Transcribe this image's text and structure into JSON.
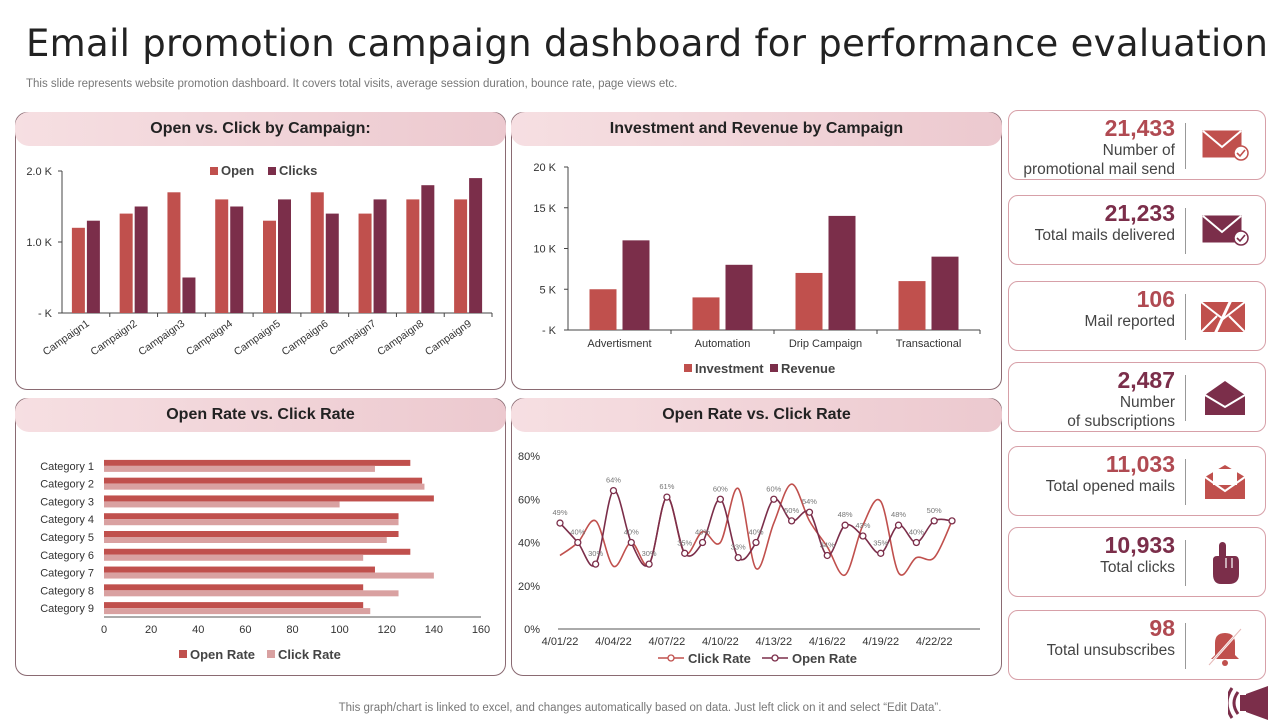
{
  "header": {
    "title": "Email promotion campaign dashboard for performance evaluation",
    "subtitle": "This slide represents website promotion dashboard. It covers total visits, average session duration, bounce rate, page views etc."
  },
  "footer": {
    "note": "This graph/chart is linked to excel,  and changes automatically based on data. Just left click on it and select “Edit Data”."
  },
  "colors": {
    "accent_red": "#c0504d",
    "accent_maroon": "#7b2e4a",
    "light_pink": "#d9a1a1",
    "kpi_border": "#d7a0a8"
  },
  "kpis": [
    {
      "value": "21,433",
      "label_lines": [
        "Number of",
        "promotional mail send"
      ],
      "icon": "mail-check-icon"
    },
    {
      "value": "21,233",
      "label_lines": [
        "Total mails delivered"
      ],
      "icon": "mail-check-icon"
    },
    {
      "value": "106",
      "label_lines": [
        "Mail reported"
      ],
      "icon": "mail-reported-icon"
    },
    {
      "value": "2,487",
      "label_lines": [
        "Number",
        "of subscriptions"
      ],
      "icon": "open-envelope-icon"
    },
    {
      "value": "11,033",
      "label_lines": [
        "Total opened mails"
      ],
      "icon": "opened-mail-icon"
    },
    {
      "value": "10,933",
      "label_lines": [
        "Total clicks"
      ],
      "icon": "pointing-hand-icon"
    },
    {
      "value": "98",
      "label_lines": [
        "Total unsubscribes"
      ],
      "icon": "bell-off-icon"
    }
  ],
  "chart_data": [
    {
      "type": "bar",
      "title": "Open vs. Click by Campaign:",
      "categories": [
        "Campaign1",
        "Campaign2",
        "Campaign3",
        "Campaign4",
        "Campaign5",
        "Campaign6",
        "Campaign7",
        "Campaign8",
        "Campaign9"
      ],
      "series": [
        {
          "name": "Open",
          "values": [
            1200,
            1400,
            1700,
            1600,
            1300,
            1700,
            1400,
            1600,
            1600
          ]
        },
        {
          "name": "Clicks",
          "values": [
            1300,
            1500,
            500,
            1500,
            1600,
            1400,
            1600,
            1800,
            1900
          ]
        }
      ],
      "y_ticks": [
        "- K",
        "1.0 K",
        "2.0 K"
      ],
      "ylim": [
        0,
        2000
      ],
      "legend": "top"
    },
    {
      "type": "bar",
      "title": "Investment and Revenue by Campaign",
      "categories": [
        "Advertisment",
        "Automation",
        "Drip Campaign",
        "Transactional"
      ],
      "series": [
        {
          "name": "Investment",
          "values": [
            5000,
            4000,
            7000,
            6000
          ]
        },
        {
          "name": "Revenue",
          "values": [
            11000,
            8000,
            14000,
            9000
          ]
        }
      ],
      "y_ticks": [
        "- K",
        "5 K",
        "10 K",
        "15 K",
        "20 K"
      ],
      "ylim": [
        0,
        20000
      ],
      "legend": "bottom"
    },
    {
      "type": "bar",
      "orientation": "horizontal",
      "title": "Open Rate vs. Click Rate",
      "categories": [
        "Category 1",
        "Category 2",
        "Category 3",
        "Category 4",
        "Category 5",
        "Category 6",
        "Category 7",
        "Category 8",
        "Category 9"
      ],
      "series": [
        {
          "name": "Open Rate",
          "values": [
            130,
            135,
            140,
            125,
            125,
            130,
            115,
            110,
            110
          ]
        },
        {
          "name": "Click Rate",
          "values": [
            115,
            136,
            100,
            125,
            120,
            110,
            140,
            125,
            113
          ]
        }
      ],
      "x_ticks": [
        "0",
        "20",
        "40",
        "60",
        "80",
        "100",
        "120",
        "140",
        "160"
      ],
      "xlim": [
        0,
        160
      ],
      "legend": "bottom"
    },
    {
      "type": "line",
      "title": "Open Rate vs. Click Rate",
      "x": [
        "4/01/22",
        "4/02/22",
        "4/03/22",
        "4/04/22",
        "4/05/22",
        "4/06/22",
        "4/07/22",
        "4/08/22",
        "4/09/22",
        "4/10/22",
        "4/11/22",
        "4/12/22",
        "4/13/22",
        "4/14/22",
        "4/15/22",
        "4/16/22",
        "4/17/22",
        "4/18/22",
        "4/19/22",
        "4/20/22",
        "4/21/22",
        "4/22/22",
        "4/23/22"
      ],
      "x_tick_labels": [
        "4/01/22",
        "4/04/22",
        "4/07/22",
        "4/10/22",
        "4/13/22",
        "4/16/22",
        "4/19/22",
        "4/22/22"
      ],
      "y_ticks": [
        "0%",
        "20%",
        "40%",
        "60%",
        "80%"
      ],
      "ylim": [
        0,
        80
      ],
      "series": [
        {
          "name": "Click Rate",
          "values": [
            34,
            40,
            50,
            29,
            40,
            30,
            61,
            35,
            45,
            40,
            65,
            28,
            49,
            67,
            50,
            38,
            25,
            48,
            59,
            26,
            33,
            33,
            50
          ]
        },
        {
          "name": "Open Rate",
          "values": [
            49,
            40,
            30,
            64,
            40,
            30,
            61,
            35,
            40,
            60,
            33,
            40,
            60,
            50,
            54,
            34,
            48,
            43,
            35,
            48,
            40,
            50,
            50
          ]
        },
        {
          "name": "Open Rate data labels",
          "labels": [
            "49%",
            "40%",
            "30%",
            "64%",
            "40%",
            "30%",
            "61%",
            "35%",
            "40%",
            "60%",
            "33%",
            "40%",
            "60%",
            "50%",
            "54%",
            "34%",
            "48%",
            "43%",
            "35%",
            "48%",
            "40%",
            "50%",
            "50%"
          ]
        }
      ],
      "legend": "bottom"
    }
  ]
}
